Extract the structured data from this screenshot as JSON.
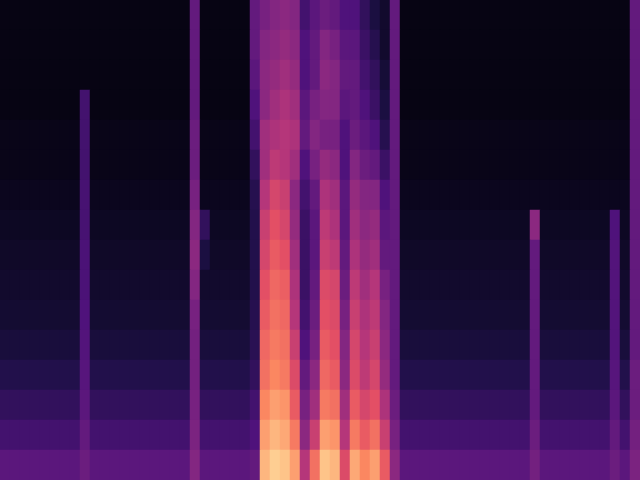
{
  "chart_data": {
    "type": "heatmap",
    "tick_labels": false,
    "zlim": [
      0,
      100
    ],
    "cells": [
      [
        3,
        3,
        3,
        3,
        3,
        3,
        3,
        3,
        3,
        3,
        3,
        3,
        3,
        3,
        3,
        3,
        3,
        3,
        3,
        30,
        3,
        3,
        3,
        3,
        3,
        30,
        35,
        38,
        40,
        38,
        22,
        28,
        32,
        30,
        25,
        25,
        18,
        12,
        8,
        30,
        3,
        3,
        3,
        3,
        3,
        3,
        3,
        3,
        3,
        3,
        3,
        3,
        3,
        3,
        3,
        3,
        3,
        3,
        3,
        3,
        3,
        3,
        3,
        30
      ],
      [
        3,
        3,
        3,
        3,
        3,
        3,
        3,
        3,
        3,
        3,
        3,
        3,
        3,
        3,
        3,
        3,
        3,
        3,
        3,
        30,
        3,
        3,
        3,
        3,
        3,
        30,
        38,
        40,
        42,
        40,
        25,
        30,
        38,
        35,
        28,
        28,
        20,
        15,
        8,
        30,
        3,
        3,
        3,
        3,
        3,
        3,
        3,
        3,
        3,
        3,
        3,
        3,
        3,
        3,
        3,
        3,
        3,
        3,
        3,
        3,
        3,
        3,
        3,
        30
      ],
      [
        3,
        3,
        3,
        3,
        3,
        3,
        3,
        3,
        3,
        3,
        3,
        3,
        3,
        3,
        3,
        3,
        3,
        3,
        3,
        30,
        3,
        3,
        3,
        3,
        3,
        28,
        40,
        42,
        45,
        42,
        25,
        30,
        40,
        38,
        30,
        30,
        22,
        18,
        10,
        30,
        3,
        3,
        3,
        3,
        3,
        3,
        3,
        3,
        3,
        3,
        3,
        3,
        3,
        3,
        3,
        3,
        3,
        3,
        3,
        3,
        3,
        3,
        3,
        30
      ],
      [
        3,
        3,
        3,
        3,
        3,
        3,
        3,
        3,
        22,
        3,
        3,
        3,
        3,
        3,
        3,
        3,
        3,
        3,
        3,
        30,
        3,
        3,
        3,
        3,
        3,
        25,
        40,
        45,
        48,
        45,
        28,
        35,
        38,
        38,
        28,
        30,
        25,
        20,
        12,
        30,
        3,
        3,
        3,
        3,
        3,
        3,
        3,
        3,
        3,
        3,
        3,
        3,
        3,
        3,
        3,
        3,
        3,
        3,
        3,
        3,
        3,
        3,
        3,
        30
      ],
      [
        4,
        4,
        4,
        4,
        4,
        4,
        4,
        4,
        22,
        4,
        4,
        4,
        4,
        4,
        4,
        4,
        4,
        4,
        4,
        32,
        4,
        4,
        4,
        4,
        4,
        22,
        45,
        48,
        50,
        48,
        30,
        38,
        35,
        35,
        25,
        32,
        28,
        25,
        15,
        30,
        4,
        4,
        4,
        4,
        4,
        4,
        4,
        4,
        4,
        4,
        4,
        4,
        4,
        4,
        4,
        4,
        4,
        4,
        4,
        4,
        4,
        4,
        4,
        30
      ],
      [
        4,
        4,
        4,
        4,
        4,
        4,
        4,
        4,
        22,
        4,
        4,
        4,
        4,
        4,
        4,
        4,
        4,
        4,
        4,
        32,
        4,
        4,
        4,
        4,
        4,
        18,
        45,
        52,
        50,
        45,
        25,
        35,
        42,
        40,
        25,
        38,
        32,
        30,
        20,
        30,
        4,
        4,
        4,
        4,
        4,
        4,
        4,
        4,
        4,
        4,
        4,
        4,
        4,
        4,
        4,
        4,
        4,
        4,
        4,
        4,
        4,
        4,
        4,
        30
      ],
      [
        5,
        5,
        5,
        5,
        5,
        5,
        5,
        5,
        23,
        5,
        5,
        5,
        5,
        5,
        5,
        5,
        5,
        5,
        5,
        35,
        5,
        5,
        5,
        5,
        5,
        15,
        50,
        58,
        55,
        40,
        22,
        30,
        48,
        45,
        28,
        42,
        38,
        38,
        25,
        30,
        5,
        5,
        5,
        5,
        5,
        5,
        5,
        5,
        5,
        5,
        5,
        5,
        5,
        5,
        5,
        5,
        5,
        5,
        5,
        5,
        5,
        5,
        5,
        30
      ],
      [
        6,
        6,
        6,
        6,
        6,
        6,
        6,
        6,
        23,
        6,
        6,
        6,
        6,
        6,
        6,
        6,
        6,
        6,
        6,
        38,
        18,
        6,
        6,
        6,
        6,
        14,
        55,
        62,
        58,
        42,
        20,
        28,
        52,
        48,
        28,
        45,
        40,
        42,
        28,
        30,
        6,
        6,
        6,
        6,
        6,
        6,
        6,
        6,
        6,
        6,
        6,
        6,
        6,
        40,
        6,
        6,
        6,
        6,
        6,
        6,
        6,
        25,
        6,
        30
      ],
      [
        7,
        7,
        7,
        7,
        7,
        7,
        7,
        7,
        24,
        7,
        7,
        7,
        7,
        7,
        7,
        7,
        7,
        7,
        7,
        40,
        12,
        7,
        7,
        7,
        7,
        14,
        58,
        65,
        62,
        45,
        20,
        28,
        55,
        52,
        30,
        48,
        42,
        45,
        30,
        30,
        7,
        7,
        7,
        7,
        7,
        7,
        7,
        7,
        7,
        7,
        7,
        7,
        7,
        30,
        7,
        7,
        7,
        7,
        7,
        7,
        7,
        26,
        7,
        30
      ],
      [
        8,
        8,
        8,
        8,
        8,
        8,
        8,
        8,
        24,
        8,
        8,
        8,
        8,
        8,
        8,
        8,
        8,
        8,
        8,
        38,
        8,
        8,
        8,
        8,
        8,
        14,
        62,
        68,
        66,
        48,
        20,
        30,
        60,
        58,
        32,
        52,
        45,
        50,
        35,
        30,
        8,
        8,
        8,
        8,
        8,
        8,
        8,
        8,
        8,
        8,
        8,
        8,
        8,
        30,
        8,
        8,
        8,
        8,
        8,
        8,
        8,
        26,
        8,
        30
      ],
      [
        9,
        9,
        9,
        9,
        9,
        9,
        9,
        9,
        25,
        9,
        9,
        9,
        9,
        9,
        9,
        9,
        9,
        9,
        9,
        35,
        9,
        9,
        9,
        9,
        9,
        15,
        65,
        70,
        68,
        50,
        22,
        32,
        62,
        60,
        35,
        55,
        48,
        52,
        38,
        30,
        9,
        9,
        9,
        9,
        9,
        9,
        9,
        9,
        9,
        9,
        9,
        9,
        9,
        30,
        9,
        9,
        9,
        9,
        9,
        9,
        9,
        26,
        9,
        30
      ],
      [
        11,
        11,
        11,
        11,
        11,
        11,
        11,
        11,
        26,
        11,
        11,
        11,
        11,
        11,
        11,
        11,
        11,
        11,
        11,
        34,
        11,
        11,
        11,
        11,
        11,
        16,
        68,
        72,
        70,
        55,
        25,
        35,
        65,
        62,
        38,
        58,
        50,
        55,
        40,
        30,
        11,
        11,
        11,
        11,
        11,
        11,
        11,
        11,
        11,
        11,
        11,
        11,
        11,
        30,
        11,
        11,
        11,
        11,
        11,
        11,
        11,
        26,
        11,
        30
      ],
      [
        14,
        14,
        14,
        14,
        14,
        14,
        14,
        14,
        27,
        14,
        14,
        14,
        14,
        14,
        14,
        14,
        14,
        14,
        14,
        34,
        14,
        14,
        14,
        14,
        14,
        18,
        70,
        75,
        72,
        60,
        30,
        40,
        68,
        65,
        40,
        60,
        52,
        58,
        42,
        30,
        14,
        14,
        14,
        14,
        14,
        14,
        14,
        14,
        14,
        14,
        14,
        14,
        14,
        30,
        14,
        14,
        14,
        14,
        14,
        14,
        14,
        27,
        14,
        32
      ],
      [
        18,
        18,
        18,
        18,
        18,
        18,
        18,
        18,
        28,
        18,
        18,
        18,
        18,
        18,
        18,
        18,
        18,
        18,
        18,
        35,
        18,
        18,
        18,
        18,
        18,
        22,
        75,
        80,
        78,
        65,
        35,
        45,
        72,
        70,
        45,
        65,
        58,
        62,
        48,
        32,
        18,
        18,
        18,
        18,
        18,
        18,
        18,
        18,
        18,
        18,
        18,
        18,
        18,
        30,
        18,
        18,
        18,
        18,
        18,
        18,
        18,
        28,
        18,
        32
      ],
      [
        22,
        22,
        22,
        22,
        22,
        22,
        22,
        22,
        30,
        22,
        22,
        22,
        22,
        22,
        22,
        22,
        22,
        22,
        22,
        36,
        22,
        22,
        22,
        22,
        22,
        25,
        80,
        85,
        82,
        72,
        40,
        55,
        80,
        78,
        50,
        72,
        65,
        70,
        55,
        35,
        22,
        22,
        22,
        22,
        22,
        22,
        22,
        22,
        22,
        22,
        22,
        22,
        22,
        32,
        22,
        22,
        22,
        22,
        22,
        22,
        22,
        30,
        22,
        34
      ],
      [
        28,
        28,
        28,
        28,
        28,
        28,
        28,
        28,
        32,
        28,
        28,
        28,
        28,
        28,
        28,
        28,
        28,
        28,
        28,
        38,
        28,
        28,
        28,
        28,
        28,
        30,
        85,
        90,
        88,
        80,
        50,
        70,
        88,
        85,
        60,
        82,
        75,
        80,
        65,
        40,
        28,
        28,
        28,
        28,
        28,
        28,
        28,
        28,
        28,
        28,
        28,
        28,
        28,
        34,
        28,
        28,
        28,
        28,
        28,
        28,
        28,
        32,
        28,
        36
      ]
    ]
  }
}
